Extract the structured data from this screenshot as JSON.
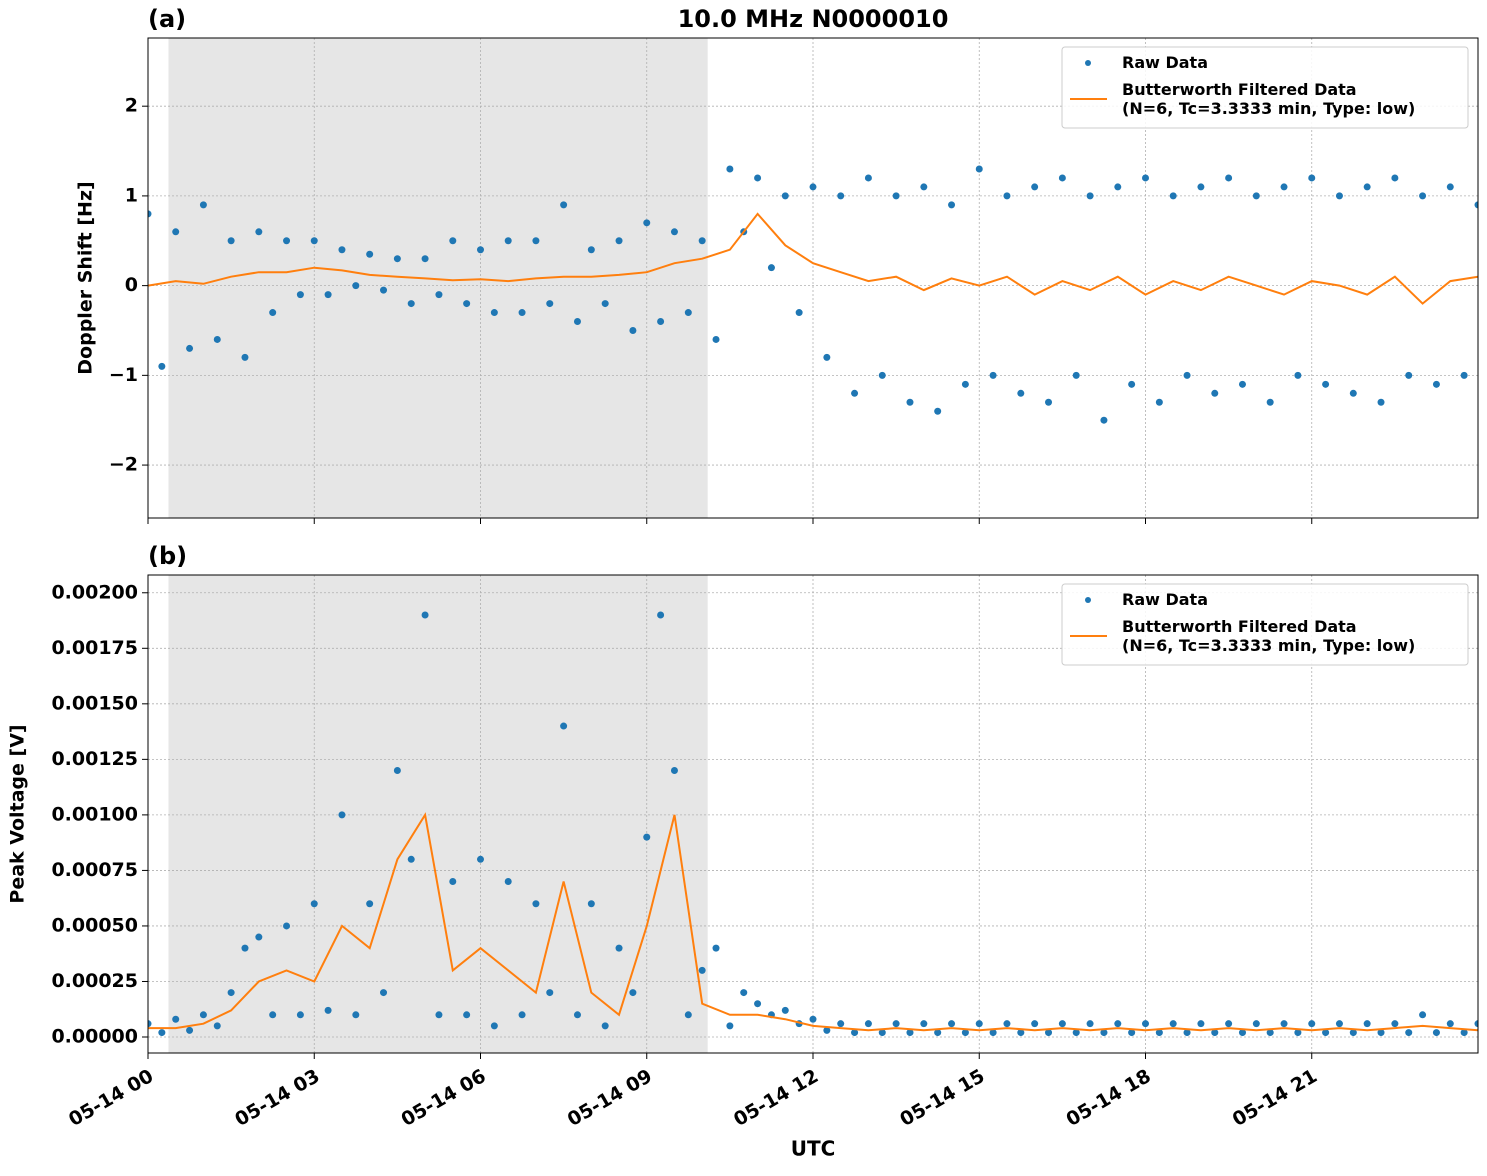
{
  "chart_data": [
    {
      "type": "scatter",
      "title": "10.0 MHz N0000010",
      "panel_label": "(a)",
      "y_label": "Doppler Shift [Hz]",
      "xlim": [
        0,
        24
      ],
      "xticks": [
        0,
        3,
        6,
        9,
        12,
        15,
        18,
        21
      ],
      "ylim": [
        -2.59,
        2.76
      ],
      "yticks": [
        {
          "value": -2,
          "label": "−2"
        },
        {
          "value": -1,
          "label": "−1"
        },
        0,
        1,
        2
      ],
      "grid": true,
      "legend": "upper right",
      "shaded_span": [
        0.37,
        10.1
      ],
      "shaded_color": "#e6e6e6",
      "series": [
        {
          "name": "Raw Data",
          "type": "scatter",
          "color": "#1f77b4",
          "x": [
            0,
            0.25,
            0.5,
            0.75,
            1,
            1.25,
            1.5,
            1.75,
            2,
            2.25,
            2.5,
            2.75,
            3,
            3.25,
            3.5,
            3.75,
            4,
            4.25,
            4.5,
            4.75,
            5,
            5.25,
            5.5,
            5.75,
            6,
            6.25,
            6.5,
            6.75,
            7,
            7.25,
            7.5,
            7.75,
            8,
            8.25,
            8.5,
            8.75,
            9,
            9.25,
            9.5,
            9.75,
            10,
            10.25,
            10.5,
            10.75,
            11,
            11.25,
            11.5,
            11.75,
            12,
            12.25,
            12.5,
            12.75,
            13,
            13.25,
            13.5,
            13.75,
            14,
            14.25,
            14.5,
            14.75,
            15,
            15.25,
            15.5,
            15.75,
            16,
            16.25,
            16.5,
            16.75,
            17,
            17.25,
            17.5,
            17.75,
            18,
            18.25,
            18.5,
            18.75,
            19,
            19.25,
            19.5,
            19.75,
            20,
            20.25,
            20.5,
            20.75,
            21,
            21.25,
            21.5,
            21.75,
            22,
            22.25,
            22.5,
            22.75,
            23,
            23.25,
            23.5,
            23.75,
            24
          ],
          "values": [
            0.8,
            -0.9,
            0.6,
            -0.7,
            0.9,
            -0.6,
            0.5,
            -0.8,
            0.6,
            -0.3,
            0.5,
            -0.1,
            0.5,
            -0.1,
            0.4,
            0,
            0.35,
            -0.05,
            0.3,
            -0.2,
            0.3,
            -0.1,
            0.5,
            -0.2,
            0.4,
            -0.3,
            0.5,
            -0.3,
            0.5,
            -0.2,
            0.9,
            -0.4,
            0.4,
            -0.2,
            0.5,
            -0.5,
            0.7,
            -0.4,
            0.6,
            -0.3,
            0.5,
            -0.6,
            1.3,
            0.6,
            1.2,
            0.2,
            1.0,
            -0.3,
            1.1,
            -0.8,
            1.0,
            -1.2,
            1.2,
            -1.0,
            1.0,
            -1.3,
            1.1,
            -1.4,
            0.9,
            -1.1,
            1.3,
            -1.0,
            1.0,
            -1.2,
            1.1,
            -1.3,
            1.2,
            -1.0,
            1.0,
            -1.5,
            1.1,
            -1.1,
            1.2,
            -1.3,
            1.0,
            -1.0,
            1.1,
            -1.2,
            1.2,
            -1.1,
            1.0,
            -1.3,
            1.1,
            -1.0,
            1.2,
            -1.1,
            1.0,
            -1.2,
            1.1,
            -1.3,
            1.2,
            -1.0,
            1.0,
            -1.1,
            1.1,
            -1.0,
            0.9
          ]
        },
        {
          "name": "Butterworth Filtered Data\n(N=6, Tc=3.3333 min, Type: low)",
          "type": "line",
          "color": "#ff7f0e",
          "x": [
            0,
            0.5,
            1,
            1.5,
            2,
            2.5,
            3,
            3.5,
            4,
            4.5,
            5,
            5.5,
            6,
            6.5,
            7,
            7.5,
            8,
            8.5,
            9,
            9.5,
            10,
            10.5,
            11,
            11.5,
            12,
            12.5,
            13,
            13.5,
            14,
            14.5,
            15,
            15.5,
            16,
            16.5,
            17,
            17.5,
            18,
            18.5,
            19,
            19.5,
            20,
            20.5,
            21,
            21.5,
            22,
            22.5,
            23,
            23.5,
            24
          ],
          "values": [
            0,
            0.05,
            0.02,
            0.1,
            0.15,
            0.15,
            0.2,
            0.17,
            0.12,
            0.1,
            0.08,
            0.06,
            0.07,
            0.05,
            0.08,
            0.1,
            0.1,
            0.12,
            0.15,
            0.25,
            0.3,
            0.4,
            0.8,
            0.45,
            0.25,
            0.15,
            0.05,
            0.1,
            -0.05,
            0.08,
            0,
            0.1,
            -0.1,
            0.05,
            -0.05,
            0.1,
            -0.1,
            0.05,
            -0.05,
            0.1,
            0,
            -0.1,
            0.05,
            0,
            -0.1,
            0.1,
            -0.2,
            0.05,
            0.1
          ]
        }
      ]
    },
    {
      "type": "scatter",
      "panel_label": "(b)",
      "y_label": "Peak Voltage [V]",
      "x_label": "UTC",
      "xlim": [
        0,
        24
      ],
      "xticks": [
        {
          "value": 0,
          "label": "05-14 00"
        },
        {
          "value": 3,
          "label": "05-14 03"
        },
        {
          "value": 6,
          "label": "05-14 06"
        },
        {
          "value": 9,
          "label": "05-14 09"
        },
        {
          "value": 12,
          "label": "05-14 12"
        },
        {
          "value": 15,
          "label": "05-14 15"
        },
        {
          "value": 18,
          "label": "05-14 18"
        },
        {
          "value": 21,
          "label": "05-14 21"
        }
      ],
      "ylim": [
        -7.2e-05,
        0.00208
      ],
      "yticks": [
        {
          "value": 0,
          "label": "0.00000"
        },
        {
          "value": 0.00025,
          "label": "0.00025"
        },
        {
          "value": 0.0005,
          "label": "0.00050"
        },
        {
          "value": 0.00075,
          "label": "0.00075"
        },
        {
          "value": 0.001,
          "label": "0.00100"
        },
        {
          "value": 0.00125,
          "label": "0.00125"
        },
        {
          "value": 0.0015,
          "label": "0.00150"
        },
        {
          "value": 0.00175,
          "label": "0.00175"
        },
        {
          "value": 0.002,
          "label": "0.00200"
        }
      ],
      "grid": true,
      "legend": "upper right",
      "shaded_span": [
        0.37,
        10.1
      ],
      "shaded_color": "#e6e6e6",
      "series": [
        {
          "name": "Raw Data",
          "type": "scatter",
          "color": "#1f77b4",
          "x": [
            0,
            0.25,
            0.5,
            0.75,
            1,
            1.25,
            1.5,
            1.75,
            2,
            2.25,
            2.5,
            2.75,
            3,
            3.25,
            3.5,
            3.75,
            4,
            4.25,
            4.5,
            4.75,
            5,
            5.25,
            5.5,
            5.75,
            6,
            6.25,
            6.5,
            6.75,
            7,
            7.25,
            7.5,
            7.75,
            8,
            8.25,
            8.5,
            8.75,
            9,
            9.25,
            9.5,
            9.75,
            10,
            10.25,
            10.5,
            10.75,
            11,
            11.25,
            11.5,
            11.75,
            12,
            12.25,
            12.5,
            12.75,
            13,
            13.25,
            13.5,
            13.75,
            14,
            14.25,
            14.5,
            14.75,
            15,
            15.25,
            15.5,
            15.75,
            16,
            16.25,
            16.5,
            16.75,
            17,
            17.25,
            17.5,
            17.75,
            18,
            18.25,
            18.5,
            18.75,
            19,
            19.25,
            19.5,
            19.75,
            20,
            20.25,
            20.5,
            20.75,
            21,
            21.25,
            21.5,
            21.75,
            22,
            22.25,
            22.5,
            22.75,
            23,
            23.25,
            23.5,
            23.75,
            24
          ],
          "values": [
            6e-05,
            2e-05,
            8e-05,
            3e-05,
            0.0001,
            5e-05,
            0.0002,
            0.0004,
            0.00045,
            0.0001,
            0.0005,
            0.0001,
            0.0006,
            0.00012,
            0.001,
            0.0001,
            0.0006,
            0.0002,
            0.0012,
            0.0008,
            0.0019,
            0.0001,
            0.0007,
            0.0001,
            0.0008,
            5e-05,
            0.0007,
            0.0001,
            0.0006,
            0.0002,
            0.0014,
            0.0001,
            0.0006,
            5e-05,
            0.0004,
            0.0002,
            0.0009,
            0.0019,
            0.0012,
            0.0001,
            0.0003,
            0.0004,
            5e-05,
            0.0002,
            0.00015,
            0.0001,
            0.00012,
            6e-05,
            8e-05,
            3e-05,
            6e-05,
            2e-05,
            6e-05,
            2e-05,
            6e-05,
            2e-05,
            6e-05,
            2e-05,
            6e-05,
            2e-05,
            6e-05,
            2e-05,
            6e-05,
            2e-05,
            6e-05,
            2e-05,
            6e-05,
            2e-05,
            6e-05,
            2e-05,
            6e-05,
            2e-05,
            6e-05,
            2e-05,
            6e-05,
            2e-05,
            6e-05,
            2e-05,
            6e-05,
            2e-05,
            6e-05,
            2e-05,
            6e-05,
            2e-05,
            6e-05,
            2e-05,
            6e-05,
            2e-05,
            6e-05,
            2e-05,
            6e-05,
            2e-05,
            0.0001,
            2e-05,
            6e-05,
            2e-05,
            6e-05
          ]
        },
        {
          "name": "Butterworth Filtered Data\n(N=6, Tc=3.3333 min, Type: low)",
          "type": "line",
          "color": "#ff7f0e",
          "x": [
            0,
            0.5,
            1,
            1.5,
            2,
            2.5,
            3,
            3.5,
            4,
            4.5,
            5,
            5.5,
            6,
            6.5,
            7,
            7.5,
            8,
            8.5,
            9,
            9.5,
            10,
            10.5,
            11,
            11.5,
            12,
            12.5,
            13,
            13.5,
            14,
            14.5,
            15,
            15.5,
            16,
            16.5,
            17,
            17.5,
            18,
            18.5,
            19,
            19.5,
            20,
            20.5,
            21,
            21.5,
            22,
            22.5,
            23,
            23.5,
            24
          ],
          "values": [
            4e-05,
            4e-05,
            6e-05,
            0.00012,
            0.00025,
            0.0003,
            0.00025,
            0.0005,
            0.0004,
            0.0008,
            0.001,
            0.0003,
            0.0004,
            0.0003,
            0.0002,
            0.0007,
            0.0002,
            0.0001,
            0.0005,
            0.001,
            0.00015,
            0.0001,
            0.0001,
            8e-05,
            5e-05,
            4e-05,
            3e-05,
            4e-05,
            3e-05,
            4e-05,
            3e-05,
            4e-05,
            3e-05,
            4e-05,
            3e-05,
            4e-05,
            3e-05,
            4e-05,
            3e-05,
            4e-05,
            3e-05,
            4e-05,
            3e-05,
            4e-05,
            3e-05,
            4e-05,
            5e-05,
            4e-05,
            3e-05
          ]
        }
      ]
    }
  ]
}
